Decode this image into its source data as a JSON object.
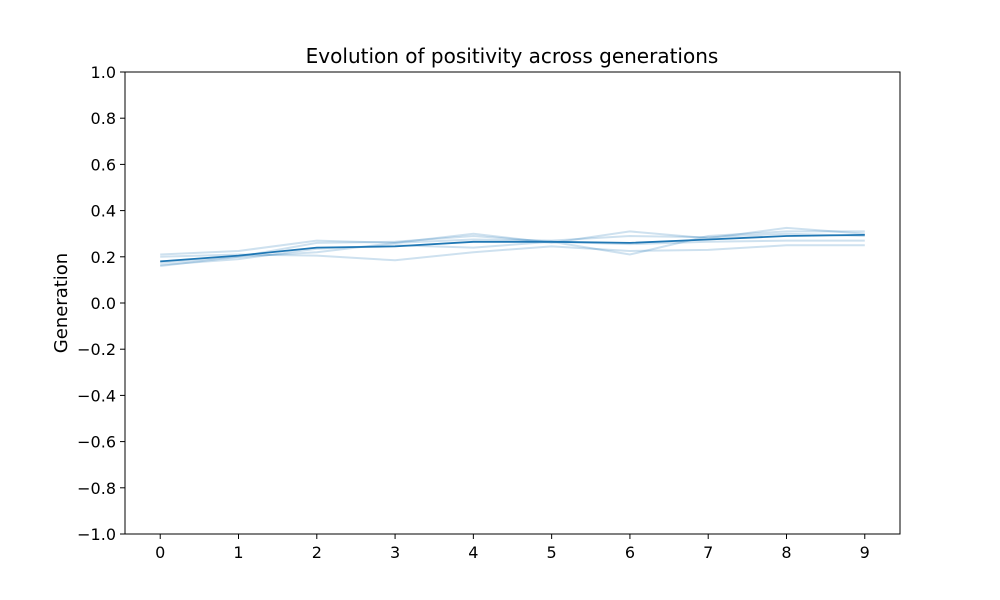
{
  "chart_data": {
    "type": "line",
    "title": "Evolution of positivity across generations",
    "xlabel": "",
    "ylabel": "Generation",
    "x": [
      0,
      1,
      2,
      3,
      4,
      5,
      6,
      7,
      8,
      9
    ],
    "xlim": [
      -0.45,
      9.45
    ],
    "ylim": [
      -1.0,
      1.0
    ],
    "xticks": [
      "0",
      "1",
      "2",
      "3",
      "4",
      "5",
      "6",
      "7",
      "8",
      "9"
    ],
    "yticks": [
      "1.0",
      "0.8",
      "0.6",
      "0.4",
      "0.2",
      "0.0",
      "−0.2",
      "−0.4",
      "−0.6",
      "−0.8",
      "−1.0"
    ],
    "ytick_values": [
      1.0,
      0.8,
      0.6,
      0.4,
      0.2,
      0.0,
      -0.2,
      -0.4,
      -0.6,
      -0.8,
      -1.0
    ],
    "grid": false,
    "colors": {
      "mean": "#1f77b4",
      "runs": "#1f77b4",
      "run_opacity": 0.22
    },
    "series": [
      {
        "values": [
          0.18,
          0.205,
          0.24,
          0.245,
          0.265,
          0.265,
          0.26,
          0.275,
          0.29,
          0.295
        ],
        "emphasis": "mean"
      },
      {
        "values": [
          0.16,
          0.2,
          0.26,
          0.265,
          0.29,
          0.265,
          0.21,
          0.29,
          0.31,
          0.31
        ],
        "emphasis": "run"
      },
      {
        "values": [
          0.21,
          0.225,
          0.27,
          0.26,
          0.3,
          0.26,
          0.31,
          0.28,
          0.325,
          0.3
        ],
        "emphasis": "run"
      },
      {
        "values": [
          0.2,
          0.21,
          0.205,
          0.185,
          0.22,
          0.245,
          0.225,
          0.23,
          0.25,
          0.25
        ],
        "emphasis": "run"
      },
      {
        "values": [
          0.165,
          0.19,
          0.235,
          0.25,
          0.24,
          0.265,
          0.255,
          0.265,
          0.27,
          0.27
        ],
        "emphasis": "run"
      },
      {
        "values": [
          0.175,
          0.2,
          0.22,
          0.26,
          0.275,
          0.27,
          0.29,
          0.285,
          0.3,
          0.29
        ],
        "emphasis": "run"
      }
    ]
  }
}
